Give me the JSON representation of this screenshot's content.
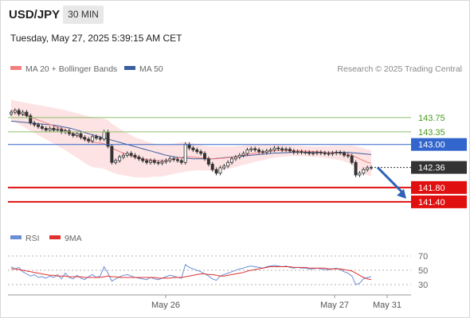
{
  "header": {
    "symbol": "USD/JPY",
    "timeframe": "30 MIN",
    "timestamp": "Tuesday, May 27, 2025 5:39:15 AM CET"
  },
  "legend": {
    "ma20_label": "MA 20 + Bollinger Bands",
    "ma50_label": "MA 50",
    "credit": "Research © 2025 Trading Central",
    "rsi_label": "RSI",
    "rsi_ma_label": "9MA"
  },
  "colors": {
    "ma20": "#f08080",
    "bollinger_fill": "#fde0e0",
    "ma50": "#3a5fa0",
    "resistance": "#8cc068",
    "resistance_text": "#4a9a20",
    "pivot": "#3366cc",
    "support": "#e01010",
    "current": "#333333",
    "rsi": "#6b8fd6",
    "rsi_ma": "#e03030",
    "arrow": "#2e63b8"
  },
  "chart_data": [
    {
      "type": "candlestick",
      "title": "",
      "ylim": [
        140.6,
        144.9
      ],
      "grid": false,
      "x_labels": [
        "May 26",
        "May 27",
        "May 31"
      ],
      "levels": [
        {
          "value": 143.75,
          "label": "143.75",
          "kind": "resistance"
        },
        {
          "value": 143.35,
          "label": "143.35",
          "kind": "resistance"
        },
        {
          "value": 143.0,
          "label": "143.00",
          "kind": "pivot"
        },
        {
          "value": 142.36,
          "label": "142.36",
          "kind": "current"
        },
        {
          "value": 141.8,
          "label": "141.80",
          "kind": "support"
        },
        {
          "value": 141.4,
          "label": "141.40",
          "kind": "support"
        }
      ],
      "close": [
        143.9,
        143.95,
        143.85,
        143.9,
        143.8,
        143.6,
        143.55,
        143.5,
        143.45,
        143.4,
        143.45,
        143.4,
        143.42,
        143.35,
        143.38,
        143.3,
        143.25,
        143.3,
        143.2,
        143.15,
        143.1,
        143.22,
        143.18,
        143.15,
        143.35,
        142.95,
        142.5,
        142.55,
        142.65,
        142.7,
        142.75,
        142.7,
        142.65,
        142.6,
        142.55,
        142.5,
        142.55,
        142.5,
        142.48,
        142.52,
        142.55,
        142.6,
        142.58,
        142.55,
        142.5,
        143.0,
        142.9,
        142.85,
        142.8,
        142.75,
        142.6,
        142.45,
        142.3,
        142.2,
        142.35,
        142.4,
        142.5,
        142.6,
        142.65,
        142.7,
        142.75,
        142.85,
        142.88,
        142.85,
        142.8,
        142.78,
        142.82,
        142.85,
        142.9,
        142.88,
        142.85,
        142.87,
        142.82,
        142.78,
        142.8,
        142.78,
        142.78,
        142.75,
        142.76,
        142.78,
        142.76,
        142.75,
        142.74,
        142.76,
        142.78,
        142.76,
        142.7,
        142.68,
        142.5,
        142.15,
        142.2,
        142.3,
        142.35,
        142.36
      ],
      "ma20": [
        143.95,
        143.92,
        143.88,
        143.84,
        143.8,
        143.76,
        143.72,
        143.68,
        143.64,
        143.6,
        143.56,
        143.52,
        143.48,
        143.44,
        143.4,
        143.35,
        143.3,
        143.25,
        143.2,
        143.15,
        143.1,
        143.07,
        143.05,
        143.04,
        143.02,
        142.98,
        142.9,
        142.85,
        142.8,
        142.76,
        142.72,
        142.68,
        142.64,
        142.62,
        142.6,
        142.58,
        142.57,
        142.56,
        142.55,
        142.55,
        142.56,
        142.58,
        142.6,
        142.62,
        142.64,
        142.66,
        142.66,
        142.65,
        142.64,
        142.63,
        142.62,
        142.61,
        142.6,
        142.6,
        142.61,
        142.62,
        142.63,
        142.64,
        142.66,
        142.68,
        142.7,
        142.72,
        142.74,
        142.76,
        142.77,
        142.78,
        142.8,
        142.81,
        142.82,
        142.83,
        142.83,
        142.83,
        142.83,
        142.83,
        142.82,
        142.82,
        142.81,
        142.81,
        142.8,
        142.8,
        142.79,
        142.79,
        142.78,
        142.78,
        142.77,
        142.76,
        142.75,
        142.73,
        142.7,
        142.65,
        142.6,
        142.55,
        142.5,
        142.48
      ],
      "ma50": [
        143.65,
        143.64,
        143.63,
        143.62,
        143.61,
        143.6,
        143.59,
        143.58,
        143.57,
        143.56,
        143.55,
        143.54,
        143.52,
        143.5,
        143.48,
        143.46,
        143.43,
        143.4,
        143.37,
        143.33,
        143.3,
        143.27,
        143.24,
        143.21,
        143.18,
        143.15,
        143.12,
        143.09,
        143.06,
        143.03,
        143.0,
        142.97,
        142.94,
        142.91,
        142.88,
        142.85,
        142.82,
        142.79,
        142.76,
        142.73,
        142.7,
        142.68,
        142.66,
        142.64,
        142.63,
        142.62,
        142.61,
        142.6,
        142.6,
        142.6,
        142.6,
        142.6,
        142.6,
        142.61,
        142.62,
        142.63,
        142.64,
        142.65,
        142.66,
        142.67,
        142.68,
        142.69,
        142.7,
        142.71,
        142.72,
        142.73,
        142.74,
        142.75,
        142.76,
        142.76,
        142.77,
        142.77,
        142.78,
        142.78,
        142.78,
        142.78,
        142.78,
        142.78,
        142.78,
        142.78,
        142.78,
        142.78,
        142.78,
        142.78,
        142.78,
        142.78,
        142.78,
        142.78,
        142.77,
        142.76,
        142.75,
        142.74,
        142.73,
        142.72
      ],
      "band_width": [
        0.3,
        0.3,
        0.32,
        0.34,
        0.36,
        0.38,
        0.4,
        0.42,
        0.44,
        0.46,
        0.48,
        0.5,
        0.52,
        0.54,
        0.56,
        0.58,
        0.6,
        0.62,
        0.64,
        0.66,
        0.68,
        0.7,
        0.7,
        0.7,
        0.7,
        0.7,
        0.68,
        0.66,
        0.64,
        0.62,
        0.6,
        0.58,
        0.56,
        0.54,
        0.52,
        0.5,
        0.48,
        0.46,
        0.45,
        0.44,
        0.43,
        0.42,
        0.42,
        0.42,
        0.42,
        0.42,
        0.4,
        0.38,
        0.36,
        0.35,
        0.34,
        0.34,
        0.34,
        0.34,
        0.33,
        0.32,
        0.31,
        0.3,
        0.29,
        0.28,
        0.27,
        0.26,
        0.25,
        0.24,
        0.23,
        0.22,
        0.21,
        0.2,
        0.19,
        0.18,
        0.17,
        0.16,
        0.15,
        0.14,
        0.14,
        0.14,
        0.14,
        0.14,
        0.14,
        0.14,
        0.15,
        0.16,
        0.17,
        0.18,
        0.19,
        0.2,
        0.22,
        0.24,
        0.27,
        0.3,
        0.33,
        0.35,
        0.36,
        0.37
      ]
    },
    {
      "type": "line",
      "title": "",
      "ylim": [
        20,
        80
      ],
      "y_ticks": [
        70,
        50,
        30
      ],
      "series": [
        {
          "name": "RSI",
          "values": [
            55,
            52,
            54,
            48,
            45,
            42,
            44,
            40,
            41,
            39,
            42,
            40,
            44,
            38,
            46,
            40,
            38,
            43,
            39,
            37,
            41,
            44,
            40,
            42,
            55,
            46,
            35,
            38,
            41,
            43,
            44,
            42,
            40,
            39,
            38,
            37,
            40,
            38,
            37,
            39,
            41,
            43,
            42,
            40,
            39,
            58,
            54,
            52,
            50,
            48,
            45,
            42,
            38,
            36,
            42,
            44,
            46,
            48,
            50,
            52,
            53,
            55,
            56,
            55,
            54,
            53,
            55,
            56,
            57,
            56,
            55,
            56,
            54,
            53,
            54,
            53,
            53,
            52,
            52,
            53,
            52,
            51,
            51,
            52,
            53,
            51,
            48,
            46,
            42,
            30,
            32,
            38,
            40,
            41
          ]
        },
        {
          "name": "9MA",
          "values": [
            52,
            52,
            51,
            50,
            49,
            48,
            47,
            46,
            45,
            44,
            43,
            43,
            42,
            42,
            42,
            41,
            41,
            41,
            41,
            40,
            40,
            40,
            40,
            40,
            41,
            42,
            41,
            41,
            40,
            40,
            40,
            40,
            40,
            40,
            40,
            40,
            40,
            40,
            39,
            39,
            39,
            39,
            40,
            40,
            40,
            41,
            42,
            43,
            44,
            45,
            45,
            44,
            44,
            43,
            42,
            42,
            43,
            44,
            45,
            46,
            47,
            49,
            50,
            51,
            52,
            53,
            54,
            55,
            55,
            55,
            55,
            55,
            55,
            54,
            54,
            54,
            54,
            53,
            53,
            53,
            53,
            53,
            52,
            52,
            52,
            52,
            51,
            50,
            49,
            46,
            43,
            40,
            38,
            37
          ]
        }
      ]
    }
  ]
}
